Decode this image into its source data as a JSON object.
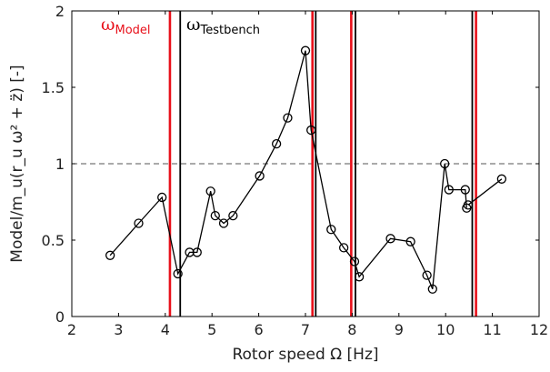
{
  "chart_data": {
    "type": "line",
    "xlabel": "Rotor speed Ω [Hz]",
    "ylabel": "Model/m_u(r_u ω² + z̈) [-]",
    "xlim": [
      2,
      12
    ],
    "ylim": [
      0,
      2
    ],
    "xticks": [
      "2",
      "3",
      "4",
      "5",
      "6",
      "7",
      "8",
      "9",
      "10",
      "11",
      "12"
    ],
    "yticks": [
      "0",
      "0.5",
      "1",
      "1.5",
      "2"
    ],
    "reference_line": {
      "y": 1,
      "style": "dashed"
    },
    "series": [
      {
        "x": [
          2.82,
          3.43,
          3.93,
          4.27,
          4.52,
          4.68,
          4.97,
          5.07,
          5.25,
          5.45,
          6.02,
          6.38,
          6.62,
          7.0,
          7.12,
          7.55,
          7.82,
          8.05,
          8.15,
          8.82,
          9.25,
          9.6,
          9.72,
          9.98,
          10.07,
          10.42,
          10.45,
          10.48,
          11.2
        ],
        "y": [
          0.4,
          0.61,
          0.78,
          0.28,
          0.42,
          0.42,
          0.82,
          0.66,
          0.61,
          0.66,
          0.92,
          1.13,
          1.3,
          1.74,
          1.22,
          0.57,
          0.45,
          0.36,
          0.26,
          0.51,
          0.49,
          0.27,
          0.18,
          1.0,
          0.83,
          0.83,
          0.71,
          0.73,
          0.9
        ],
        "breaks_after_index": [
          26
        ]
      }
    ],
    "vertical_lines": {
      "model": {
        "color": "#e8101a",
        "x": [
          4.1,
          7.15,
          7.98,
          10.65
        ]
      },
      "testbench": {
        "color": "#000000",
        "x": [
          4.32,
          7.22,
          8.07,
          10.57
        ]
      }
    },
    "legend": {
      "placement": "top-left",
      "model_symbol": "ω",
      "model_subscript": "Model",
      "testbench_symbol": "ω",
      "testbench_subscript": "Testbench"
    }
  }
}
